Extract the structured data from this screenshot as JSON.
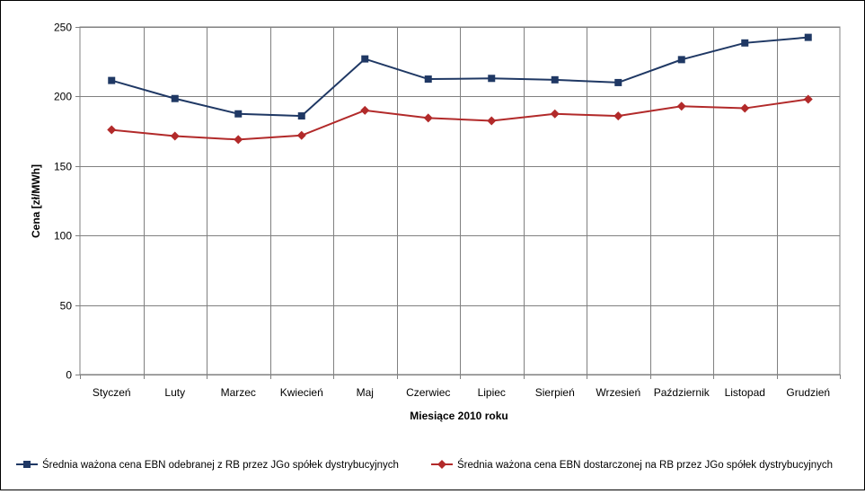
{
  "chart_data": {
    "type": "line",
    "title": "",
    "xlabel": "Miesiące 2010  roku",
    "ylabel": "Cena [zł/MWh]",
    "ylim": [
      0,
      250
    ],
    "yticks": [
      0,
      50,
      100,
      150,
      200,
      250
    ],
    "grid": true,
    "legend_position": "bottom",
    "categories": [
      "Styczeń",
      "Luty",
      "Marzec",
      "Kwiecień",
      "Maj",
      "Czerwiec",
      "Lipiec",
      "Sierpień",
      "Wrzesień",
      "Październik",
      "Listopad",
      "Grudzień"
    ],
    "series": [
      {
        "name": "Średnia ważona cena EBN odebranej z RB  przez JGo  spółek dystrybucyjnych",
        "color": "#1f3864",
        "marker": "square",
        "values": [
          211.5,
          198.5,
          187.5,
          186,
          227,
          212.5,
          213,
          212,
          210,
          226.5,
          238.5,
          242.5
        ]
      },
      {
        "name": "Średnia ważona cena EBN dostarczonej na RB przez JGo  spółek dystrybucyjnych",
        "color": "#b22a2a",
        "marker": "diamond",
        "values": [
          176,
          171.5,
          169,
          172,
          190,
          184.5,
          182.5,
          187.5,
          186,
          193,
          191.5,
          198
        ]
      }
    ]
  }
}
